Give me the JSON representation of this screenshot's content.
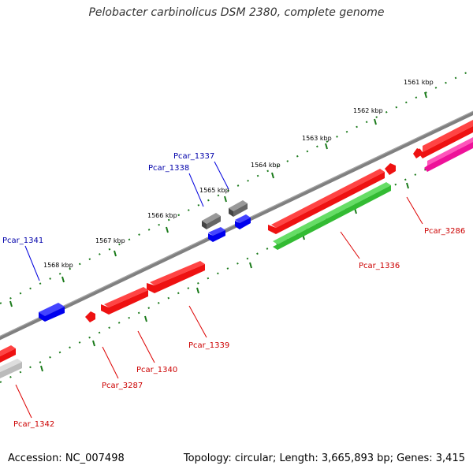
{
  "title": "Pelobacter carbinolicus DSM 2380, complete genome",
  "footer": {
    "accession_label": "Accession: NC_007498",
    "stats_label": "Topology: circular; Length: 3,665,893 bp; Genes: 3,415"
  },
  "kbp_labels": [
    "1561 kbp",
    "1562 kbp",
    "1563 kbp",
    "1564 kbp",
    "1565 kbp",
    "1566 kbp",
    "1567 kbp",
    "1568 kbp"
  ],
  "genes": [
    {
      "name": "Pcar_1337",
      "strand": "forward",
      "color": "#666666"
    },
    {
      "name": "Pcar_1338",
      "strand": "forward",
      "color": "#0000ee"
    },
    {
      "name": "Pcar_1341",
      "strand": "forward",
      "color": "#0000ee"
    },
    {
      "name": "Pcar_3286",
      "strand": "reverse",
      "color": "#ee0000"
    },
    {
      "name": "Pcar_1336",
      "strand": "reverse",
      "color": "#ee0000"
    },
    {
      "name": "Pcar_1339",
      "strand": "reverse",
      "color": "#ee0000"
    },
    {
      "name": "Pcar_1340",
      "strand": "reverse",
      "color": "#ee0000"
    },
    {
      "name": "Pcar_3287",
      "strand": "reverse",
      "color": "#ee0000"
    },
    {
      "name": "Pcar_1342",
      "strand": "reverse",
      "color": "#ee0000"
    }
  ],
  "colors": {
    "backbone": "#808080",
    "tick": "#1a7a1a",
    "gene_red": "#ee1111",
    "gene_blue": "#0000ee",
    "gene_gray": "#666666",
    "gene_green": "#33bb33",
    "gene_magenta": "#ee1199",
    "gene_lightgray": "#bbbbbb"
  }
}
